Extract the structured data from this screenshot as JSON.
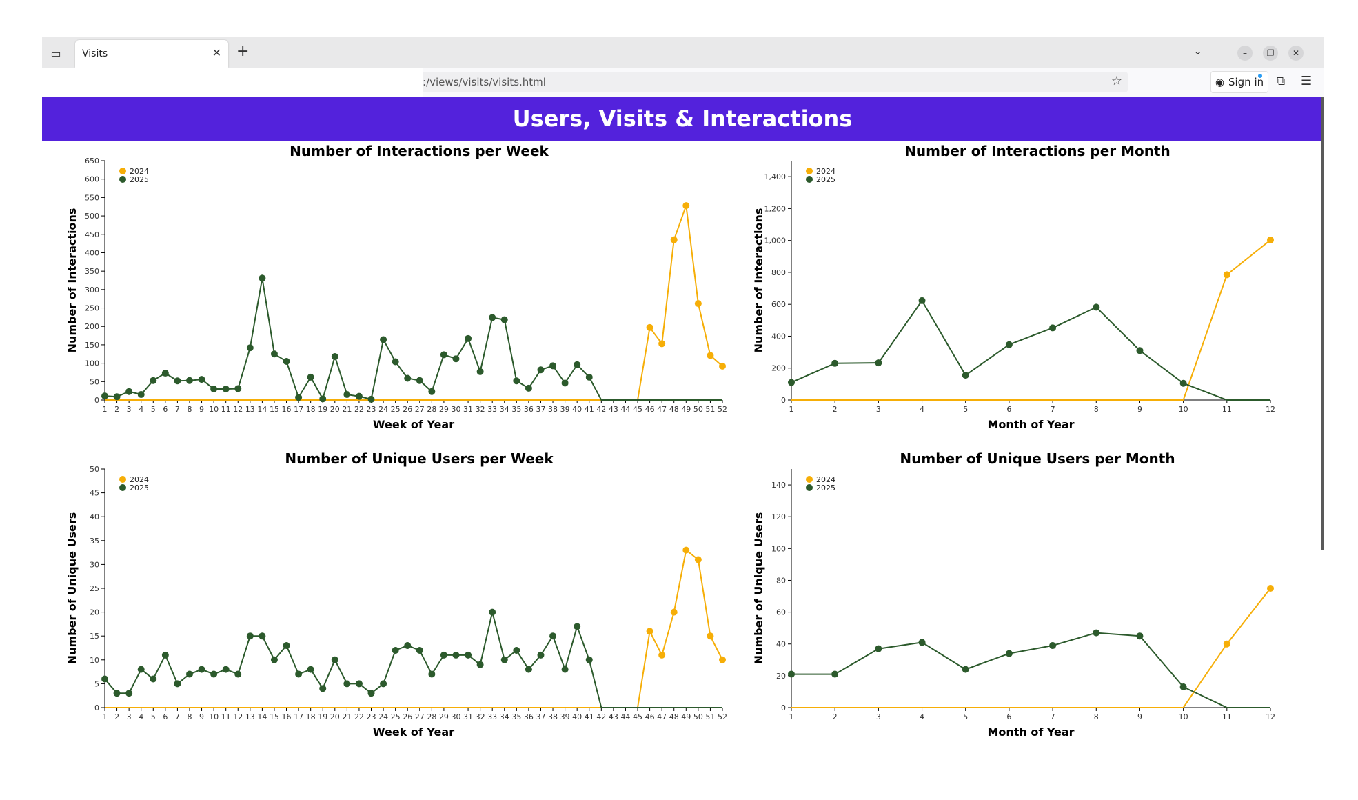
{
  "browser": {
    "tab_title": "Visits",
    "url": ":/views/visits/visits.html",
    "sign_in_label": "Sign in"
  },
  "page": {
    "title": "Users, Visits & Interactions"
  },
  "colors": {
    "y2024": "#f6ae07",
    "y2025": "#2c5a2c",
    "banner": "#5322dc"
  },
  "chart_data": [
    {
      "type": "line",
      "title": "Number of Interactions per Week",
      "xlabel": "Week of Year",
      "ylabel": "Number of Interactions",
      "x": [
        1,
        2,
        3,
        4,
        5,
        6,
        7,
        8,
        9,
        10,
        11,
        12,
        13,
        14,
        15,
        16,
        17,
        18,
        19,
        20,
        21,
        22,
        23,
        24,
        25,
        26,
        27,
        28,
        29,
        30,
        31,
        32,
        33,
        34,
        35,
        36,
        37,
        38,
        39,
        40,
        41,
        42,
        43,
        44,
        45,
        46,
        47,
        48,
        49,
        50,
        51,
        52
      ],
      "ylim": [
        0,
        650
      ],
      "yticks": [
        0,
        50,
        100,
        150,
        200,
        250,
        300,
        350,
        400,
        450,
        500,
        550,
        600,
        650
      ],
      "legend": [
        "2024",
        "2025"
      ],
      "legend_position": "top-left",
      "series": [
        {
          "name": "2024",
          "markers_from": 46,
          "values": [
            0,
            0,
            0,
            0,
            0,
            0,
            0,
            0,
            0,
            0,
            0,
            0,
            0,
            0,
            0,
            0,
            0,
            0,
            0,
            0,
            0,
            0,
            0,
            0,
            0,
            0,
            0,
            0,
            0,
            0,
            0,
            0,
            0,
            0,
            0,
            0,
            0,
            0,
            0,
            0,
            0,
            0,
            0,
            0,
            0,
            197,
            153,
            435,
            528,
            262,
            121,
            92
          ]
        },
        {
          "name": "2025",
          "markers_to": 41,
          "values": [
            11,
            9,
            23,
            15,
            53,
            73,
            52,
            53,
            56,
            30,
            30,
            31,
            142,
            331,
            125,
            105,
            7,
            62,
            3,
            118,
            15,
            10,
            2,
            164,
            104,
            59,
            53,
            23,
            123,
            112,
            167,
            77,
            224,
            218,
            52,
            32,
            82,
            93,
            46,
            96,
            62,
            0,
            0,
            0,
            0,
            0,
            0,
            0,
            0,
            0,
            0,
            0
          ]
        }
      ]
    },
    {
      "type": "line",
      "title": "Number of Interactions per Month",
      "xlabel": "Month of Year",
      "ylabel": "Number of Interactions",
      "x": [
        1,
        2,
        3,
        4,
        5,
        6,
        7,
        8,
        9,
        10,
        11,
        12
      ],
      "ylim": [
        0,
        1500
      ],
      "yticks": [
        0,
        200,
        400,
        600,
        800,
        1000,
        1200,
        1400
      ],
      "ytick_labels": [
        "0",
        "200",
        "400",
        "600",
        "800",
        "1,000",
        "1,200",
        "1,400"
      ],
      "legend": [
        "2024",
        "2025"
      ],
      "legend_position": "top-left",
      "series": [
        {
          "name": "2024",
          "markers_from": 11,
          "values": [
            0,
            0,
            0,
            0,
            0,
            0,
            0,
            0,
            0,
            0,
            785,
            1003
          ]
        },
        {
          "name": "2025",
          "markers_to": 10,
          "values": [
            110,
            230,
            233,
            623,
            155,
            347,
            452,
            582,
            310,
            105,
            0,
            0
          ]
        }
      ]
    },
    {
      "type": "line",
      "title": "Number of Unique Users per Week",
      "xlabel": "Week of Year",
      "ylabel": "Number of Unique Users",
      "x": [
        1,
        2,
        3,
        4,
        5,
        6,
        7,
        8,
        9,
        10,
        11,
        12,
        13,
        14,
        15,
        16,
        17,
        18,
        19,
        20,
        21,
        22,
        23,
        24,
        25,
        26,
        27,
        28,
        29,
        30,
        31,
        32,
        33,
        34,
        35,
        36,
        37,
        38,
        39,
        40,
        41,
        42,
        43,
        44,
        45,
        46,
        47,
        48,
        49,
        50,
        51,
        52
      ],
      "ylim": [
        0,
        50
      ],
      "yticks": [
        0,
        5,
        10,
        15,
        20,
        25,
        30,
        35,
        40,
        45,
        50
      ],
      "legend": [
        "2024",
        "2025"
      ],
      "legend_position": "top-left",
      "series": [
        {
          "name": "2024",
          "markers_from": 46,
          "values": [
            0,
            0,
            0,
            0,
            0,
            0,
            0,
            0,
            0,
            0,
            0,
            0,
            0,
            0,
            0,
            0,
            0,
            0,
            0,
            0,
            0,
            0,
            0,
            0,
            0,
            0,
            0,
            0,
            0,
            0,
            0,
            0,
            0,
            0,
            0,
            0,
            0,
            0,
            0,
            0,
            0,
            0,
            0,
            0,
            0,
            16,
            11,
            20,
            33,
            31,
            15,
            10
          ]
        },
        {
          "name": "2025",
          "markers_to": 41,
          "values": [
            6,
            3,
            3,
            8,
            6,
            11,
            5,
            7,
            8,
            7,
            8,
            7,
            15,
            15,
            10,
            13,
            7,
            8,
            4,
            10,
            5,
            5,
            3,
            5,
            12,
            13,
            12,
            7,
            11,
            11,
            11,
            9,
            20,
            10,
            12,
            8,
            11,
            15,
            8,
            17,
            10,
            0,
            0,
            0,
            0,
            0,
            0,
            0,
            0,
            0,
            0,
            0
          ]
        }
      ]
    },
    {
      "type": "line",
      "title": "Number of Unique Users per Month",
      "xlabel": "Month of Year",
      "ylabel": "Number of Unique Users",
      "x": [
        1,
        2,
        3,
        4,
        5,
        6,
        7,
        8,
        9,
        10,
        11,
        12
      ],
      "ylim": [
        0,
        150
      ],
      "yticks": [
        0,
        20,
        40,
        60,
        80,
        100,
        120,
        140
      ],
      "legend": [
        "2024",
        "2025"
      ],
      "legend_position": "top-left",
      "series": [
        {
          "name": "2024",
          "markers_from": 11,
          "values": [
            0,
            0,
            0,
            0,
            0,
            0,
            0,
            0,
            0,
            0,
            40,
            75
          ]
        },
        {
          "name": "2025",
          "markers_to": 10,
          "values": [
            21,
            21,
            37,
            41,
            24,
            34,
            39,
            47,
            45,
            13,
            0,
            0
          ]
        }
      ]
    }
  ]
}
